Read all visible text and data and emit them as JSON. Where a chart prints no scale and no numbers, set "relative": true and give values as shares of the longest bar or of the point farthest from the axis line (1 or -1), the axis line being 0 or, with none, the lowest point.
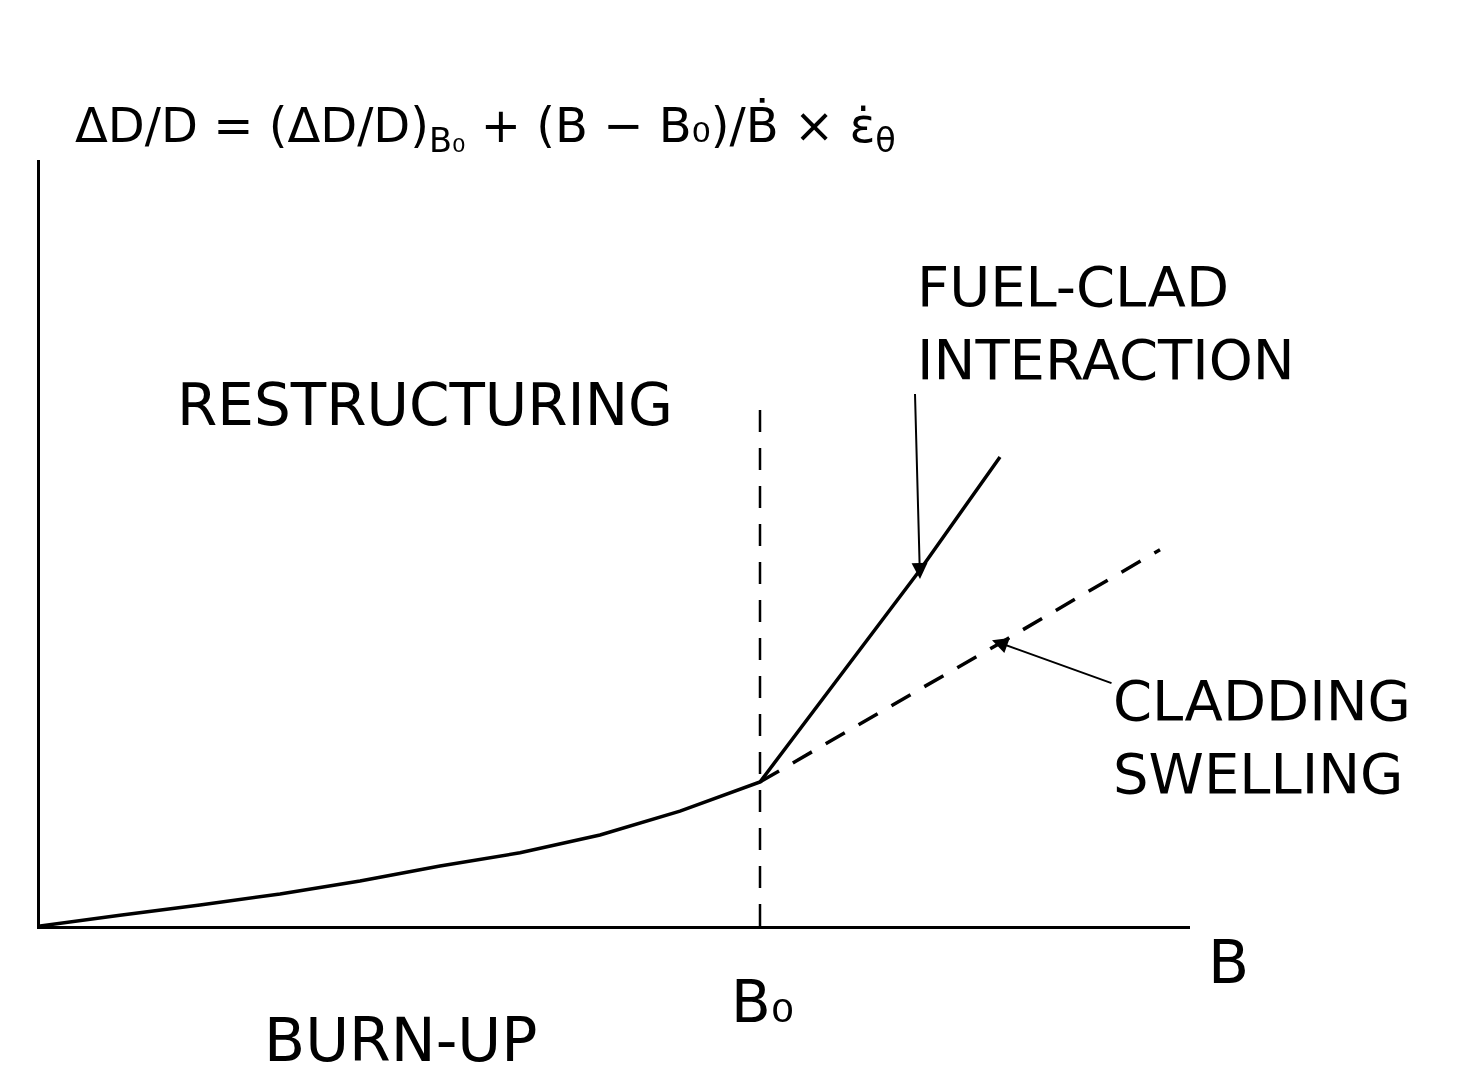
{
  "chart_data": {
    "type": "line",
    "title": "ΔD/D = (ΔD/D)$_{B₀}$ + (B − B₀)/Ḃ × ε̇$_{θ}$",
    "xlabel": "BURN-UP",
    "annotations": [
      "RESTRUCTURING",
      "B",
      "B₀"
    ],
    "categories": [
      null,
      null,
      null,
      null,
      null,
      null,
      null,
      null,
      null,
      null,
      null,
      null,
      null,
      null,
      null
    ],
    "relative": true,
    "series": [
      {
        "name": "FUEL-CLAD INTERACTION",
        "color": "#000000",
        "line_style": "solid",
        "values": [
          0,
          0.023,
          0.045,
          0.068,
          0.096,
          0.128,
          0.156,
          0.194,
          0.245,
          0.307,
          0.533,
          0.759,
          1,
          null,
          null
        ]
      },
      {
        "name": "CLADDING SWELLING",
        "color": "#000000",
        "line_style": "dashed",
        "values": [
          null,
          null,
          null,
          null,
          null,
          null,
          null,
          null,
          null,
          0.307,
          0.406,
          0.505,
          0.603,
          0.703,
          0.802
        ]
      }
    ],
    "legend": false
  }
}
